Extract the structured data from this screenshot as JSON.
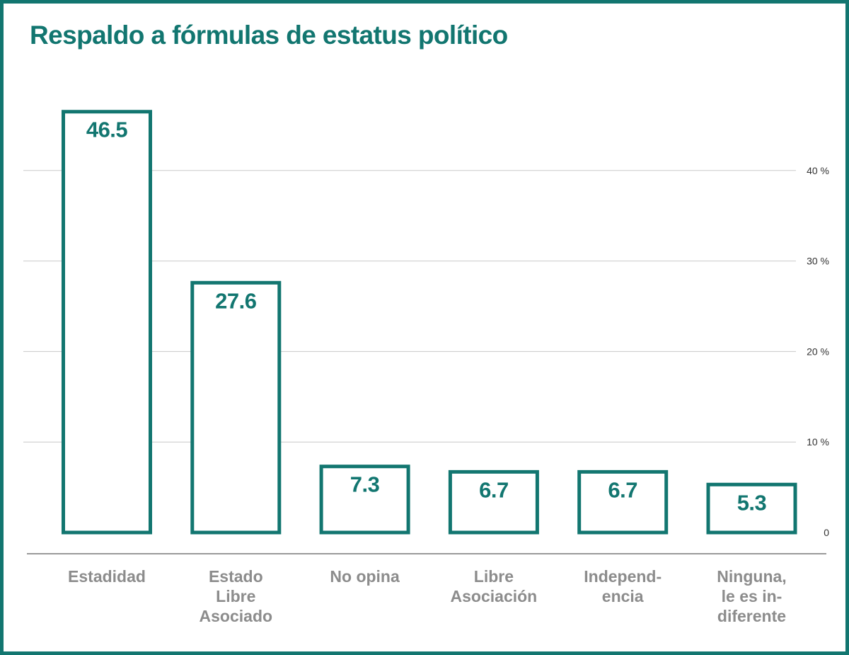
{
  "title": "Respaldo a fórmulas de estatus político",
  "colors": {
    "accent": "#127670",
    "grid": "#c9c9c9",
    "axis": "#9a9a9a",
    "category_text": "#8c8c8c",
    "background": "#ffffff"
  },
  "chart_data": {
    "type": "bar",
    "title": "Respaldo a fórmulas de estatus político",
    "xlabel": "",
    "ylabel": "",
    "categories": [
      [
        "Estadidad"
      ],
      [
        "Estado",
        "Libre",
        "Asociado"
      ],
      [
        "No opina"
      ],
      [
        "Libre",
        "Asociación"
      ],
      [
        "Independ-",
        "encia"
      ],
      [
        "Ninguna,",
        "le es in-",
        "diferente"
      ]
    ],
    "values": [
      46.5,
      27.6,
      7.3,
      6.7,
      6.7,
      5.3
    ],
    "value_labels": [
      "46.5",
      "27.6",
      "7.3",
      "6.7",
      "6.7",
      "5.3"
    ],
    "ylim": [
      0,
      46.5
    ],
    "yticks": [
      0,
      10,
      20,
      30,
      40
    ],
    "ytick_labels": [
      "0",
      "10 %",
      "20 %",
      "30 %",
      "40 %"
    ],
    "y_axis_side": "right",
    "grid": true,
    "legend": "none"
  }
}
